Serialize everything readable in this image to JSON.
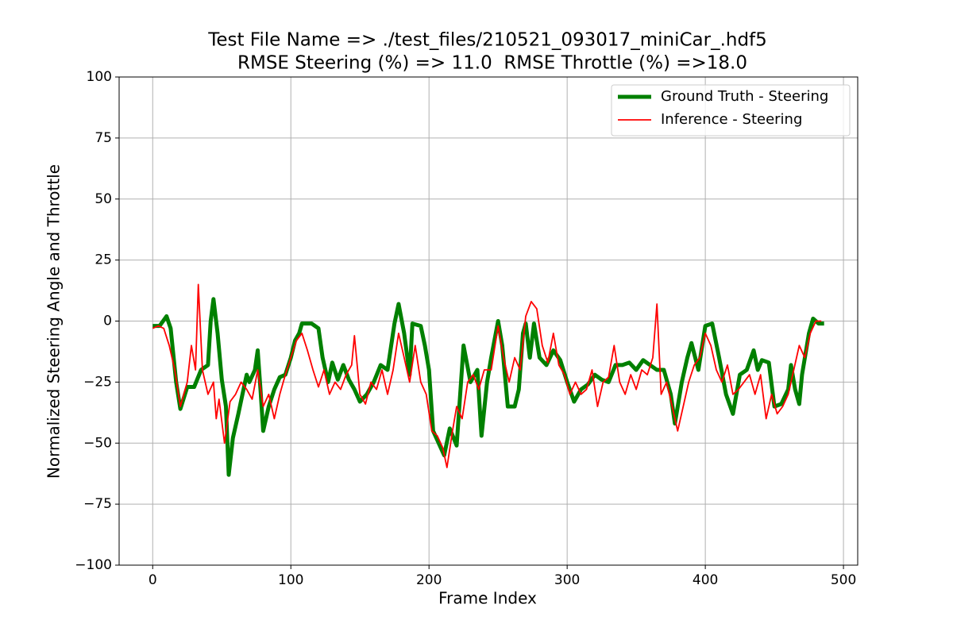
{
  "chart_data": {
    "type": "line",
    "title": "Test File Name => ./test_files/210521_093017_miniCar_.hdf5",
    "subtitle": "RMSE Steering (%) => 11.0  RMSE Throttle (%) =>18.0",
    "x_label": "Frame Index",
    "y_label": "Normalized Steering Angle and Throttle",
    "xlim": [
      -24.3,
      510.3
    ],
    "ylim": [
      -100,
      100
    ],
    "xticks": [
      0,
      100,
      200,
      300,
      400,
      500
    ],
    "yticks": [
      {
        "value": -100,
        "label": "−100"
      },
      {
        "value": -75,
        "label": "−75"
      },
      {
        "value": -50,
        "label": "−50"
      },
      {
        "value": -25,
        "label": "−25"
      },
      0,
      25,
      50,
      75,
      100
    ],
    "grid": true,
    "legend": "upper right",
    "series": [
      {
        "name": "Ground Truth - Steering",
        "color": "#008000",
        "width": 5,
        "x": [
          0,
          5,
          10,
          13,
          17,
          20,
          25,
          30,
          35,
          40,
          42,
          44,
          47,
          50,
          53,
          55,
          58,
          62,
          65,
          68,
          70,
          74,
          76,
          78,
          80,
          84,
          88,
          92,
          96,
          100,
          103,
          106,
          108,
          115,
          120,
          123,
          127,
          130,
          134,
          138,
          142,
          146,
          150,
          155,
          160,
          165,
          170,
          175,
          178,
          182,
          186,
          188,
          194,
          197,
          200,
          203,
          207,
          211,
          215,
          220,
          225,
          230,
          235,
          238,
          242,
          245,
          250,
          253,
          257,
          262,
          265,
          268,
          270,
          273,
          276,
          280,
          285,
          290,
          295,
          300,
          305,
          310,
          315,
          320,
          325,
          330,
          335,
          340,
          345,
          350,
          355,
          360,
          365,
          370,
          375,
          378,
          383,
          387,
          390,
          395,
          400,
          405,
          410,
          415,
          420,
          425,
          430,
          435,
          438,
          441,
          446,
          450,
          455,
          460,
          462,
          465,
          468,
          470,
          475,
          478,
          482,
          486
        ],
        "values": [
          -2,
          -2,
          2,
          -3,
          -25,
          -36,
          -27,
          -27,
          -20,
          -18,
          0,
          9,
          -5,
          -24,
          -35,
          -63,
          -48,
          -38,
          -30,
          -22,
          -25,
          -20,
          -12,
          -28,
          -45,
          -35,
          -28,
          -23,
          -22,
          -15,
          -8,
          -5,
          -1,
          -1,
          -3,
          -15,
          -25,
          -17,
          -24,
          -18,
          -24,
          -28,
          -33,
          -30,
          -25,
          -18,
          -20,
          -1,
          7,
          -5,
          -22,
          -1,
          -2,
          -10,
          -20,
          -45,
          -50,
          -55,
          -44,
          -51,
          -10,
          -25,
          -20,
          -47,
          -25,
          -15,
          0,
          -10,
          -35,
          -35,
          -28,
          -5,
          -1,
          -15,
          -1,
          -15,
          -18,
          -12,
          -16,
          -25,
          -33,
          -28,
          -26,
          -22,
          -24,
          -25,
          -18,
          -18,
          -17,
          -20,
          -16,
          -18,
          -20,
          -20,
          -30,
          -42,
          -25,
          -15,
          -9,
          -20,
          -2,
          -1,
          -15,
          -30,
          -38,
          -22,
          -20,
          -12,
          -20,
          -16,
          -17,
          -35,
          -34,
          -28,
          -18,
          -28,
          -34,
          -22,
          -5,
          1,
          -1,
          -1
        ]
      },
      {
        "name": "Inference - Steering",
        "color": "#ff0000",
        "width": 1.8,
        "x": [
          0,
          4,
          8,
          12,
          16,
          20,
          25,
          28,
          31,
          33,
          36,
          40,
          44,
          46,
          48,
          52,
          56,
          60,
          64,
          68,
          72,
          76,
          80,
          84,
          88,
          92,
          96,
          100,
          104,
          108,
          112,
          116,
          120,
          124,
          128,
          132,
          136,
          140,
          144,
          146,
          150,
          154,
          158,
          162,
          166,
          170,
          174,
          178,
          182,
          186,
          190,
          194,
          198,
          202,
          206,
          210,
          213,
          217,
          220,
          224,
          228,
          232,
          236,
          240,
          245,
          250,
          254,
          258,
          262,
          266,
          270,
          274,
          278,
          282,
          286,
          290,
          294,
          298,
          302,
          306,
          310,
          314,
          318,
          322,
          326,
          330,
          334,
          338,
          342,
          346,
          350,
          354,
          358,
          362,
          365,
          368,
          372,
          376,
          380,
          384,
          388,
          392,
          396,
          400,
          404,
          408,
          412,
          416,
          420,
          424,
          428,
          432,
          436,
          440,
          444,
          448,
          452,
          456,
          460,
          464,
          468,
          472,
          476,
          480,
          484
        ],
        "values": [
          -3,
          -2,
          -3,
          -10,
          -20,
          -35,
          -25,
          -10,
          -20,
          15,
          -20,
          -30,
          -25,
          -40,
          -32,
          -50,
          -33,
          -30,
          -25,
          -28,
          -32,
          -20,
          -35,
          -30,
          -40,
          -30,
          -22,
          -15,
          -8,
          -5,
          -12,
          -20,
          -27,
          -20,
          -30,
          -25,
          -28,
          -22,
          -18,
          -6,
          -30,
          -34,
          -25,
          -28,
          -20,
          -30,
          -20,
          -5,
          -15,
          -25,
          -10,
          -25,
          -30,
          -45,
          -47,
          -52,
          -60,
          -45,
          -35,
          -40,
          -25,
          -22,
          -28,
          -20,
          -20,
          -2,
          -15,
          -25,
          -15,
          -20,
          2,
          8,
          5,
          -10,
          -17,
          -5,
          -18,
          -22,
          -30,
          -25,
          -30,
          -28,
          -20,
          -35,
          -25,
          -23,
          -10,
          -25,
          -30,
          -22,
          -28,
          -20,
          -22,
          -15,
          7,
          -30,
          -25,
          -35,
          -45,
          -35,
          -25,
          -18,
          -15,
          -5,
          -10,
          -20,
          -25,
          -18,
          -30,
          -28,
          -25,
          -22,
          -30,
          -22,
          -40,
          -30,
          -38,
          -35,
          -30,
          -20,
          -10,
          -15,
          -5,
          0,
          0
        ]
      }
    ]
  }
}
